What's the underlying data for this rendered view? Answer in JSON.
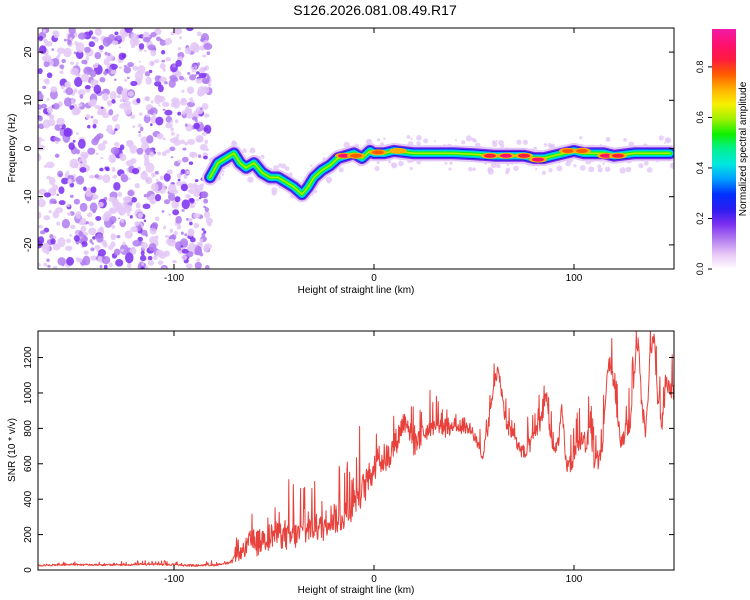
{
  "title": "S126.2026.081.08.49.R17",
  "chart_data": [
    {
      "type": "heatmap",
      "name": "spectrogram",
      "xlabel": "Height of straight line (km)",
      "ylabel": "Frequency (Hz)",
      "xlim": [
        -168,
        150
      ],
      "ylim": [
        -25,
        25
      ],
      "xticks": [
        -100,
        0,
        100
      ],
      "xtick_labels": [
        "-100",
        "0",
        "100"
      ],
      "yticks": [
        -20,
        -10,
        0,
        10,
        20
      ],
      "ytick_labels": [
        "-20",
        "-10",
        "0",
        "10",
        "20"
      ],
      "grid": false,
      "colorbar": {
        "label": "Normalized spectral amplitude",
        "range": [
          0,
          0.95
        ],
        "ticks": [
          0.0,
          0.2,
          0.4,
          0.6,
          0.8
        ],
        "tick_labels": [
          "0.0",
          "0.2",
          "0.4",
          "0.6",
          "0.8"
        ],
        "colors": [
          "#ffffff",
          "#e7c6f6",
          "#b27cf0",
          "#7a2ef0",
          "#2a1cf0",
          "#0032ff",
          "#00a0ff",
          "#00e8e0",
          "#00f090",
          "#10f000",
          "#a0f000",
          "#f8f000",
          "#ffb000",
          "#ff5a00",
          "#ff1a40",
          "#ff1070",
          "#f01aa8"
        ]
      },
      "ridge": {
        "x": [
          -82,
          -78,
          -74,
          -70,
          -67,
          -64,
          -60,
          -56,
          -52,
          -48,
          -44,
          -40,
          -36,
          -33,
          -30,
          -26,
          -22,
          -18,
          -14,
          -10,
          -6,
          -2,
          0,
          5,
          10,
          20,
          30,
          40,
          50,
          60,
          70,
          75,
          80,
          85,
          90,
          95,
          100,
          105,
          110,
          115,
          120,
          130,
          140,
          148
        ],
        "y": [
          -6,
          -3,
          -2,
          -1,
          -3,
          -4,
          -3,
          -5,
          -6,
          -6,
          -7,
          -8,
          -9.5,
          -8,
          -6,
          -4.5,
          -3.5,
          -2,
          -1.5,
          -1,
          -2,
          -0.5,
          -1,
          -1,
          -0.5,
          -1,
          -1,
          -1,
          -1.2,
          -1.5,
          -1.5,
          -1.5,
          -2,
          -2,
          -1.5,
          -1,
          -0.5,
          -1,
          -1,
          -1,
          -1.5,
          -1,
          -1,
          -1
        ]
      },
      "hotspots": [
        {
          "x": -15,
          "y": -1.5,
          "level": 0.9
        },
        {
          "x": -9,
          "y": -1.5,
          "level": 0.75
        },
        {
          "x": 2,
          "y": -0.8,
          "level": 0.8
        },
        {
          "x": 12,
          "y": -0.5,
          "level": 0.7
        },
        {
          "x": 58,
          "y": -1.5,
          "level": 0.85
        },
        {
          "x": 66,
          "y": -1.5,
          "level": 0.9
        },
        {
          "x": 75,
          "y": -1.5,
          "level": 0.85
        },
        {
          "x": 82,
          "y": -2.3,
          "level": 0.9
        },
        {
          "x": 97,
          "y": -0.5,
          "level": 0.8
        },
        {
          "x": 104,
          "y": -0.5,
          "level": 0.75
        },
        {
          "x": 116,
          "y": -1.5,
          "level": 0.9
        },
        {
          "x": 122,
          "y": -1.5,
          "level": 0.85
        }
      ],
      "noise_region_x": [
        -168,
        -82
      ]
    },
    {
      "type": "line",
      "name": "snr",
      "xlabel": "Height of straight line (km)",
      "ylabel": "SNR (10 * v/v)",
      "xlim": [
        -168,
        150
      ],
      "ylim": [
        0,
        1350
      ],
      "xticks": [
        -100,
        0,
        100
      ],
      "xtick_labels": [
        "-100",
        "0",
        "100"
      ],
      "yticks": [
        0,
        200,
        400,
        600,
        800,
        1000,
        1200
      ],
      "ytick_labels": [
        "0",
        "200",
        "400",
        "600",
        "800",
        "1000",
        "1200"
      ],
      "grid": false,
      "series": [
        {
          "name": "SNR",
          "color": "#e8403a",
          "envelope": {
            "x": [
              -168,
              -150,
              -130,
              -110,
              -90,
              -80,
              -72,
              -66,
              -62,
              -58,
              -54,
              -50,
              -46,
              -42,
              -38,
              -34,
              -30,
              -26,
              -22,
              -18,
              -14,
              -10,
              -6,
              -2,
              0,
              4,
              8,
              12,
              14,
              16,
              20,
              24,
              28,
              32,
              36,
              40,
              44,
              48,
              50,
              54,
              58,
              60,
              62,
              64,
              66,
              70,
              72,
              76,
              80,
              84,
              86,
              88,
              90,
              92,
              94,
              96,
              98,
              100,
              104,
              106,
              108,
              110,
              112,
              114,
              116,
              118,
              120,
              122,
              124,
              126,
              128,
              130,
              132,
              134,
              136,
              138,
              140,
              142,
              144,
              146,
              148,
              150
            ],
            "y": [
              25,
              30,
              28,
              32,
              25,
              28,
              40,
              100,
              160,
              150,
              180,
              200,
              190,
              180,
              200,
              220,
              250,
              230,
              300,
              280,
              320,
              380,
              450,
              520,
              600,
              620,
              650,
              750,
              820,
              850,
              700,
              760,
              800,
              820,
              780,
              810,
              800,
              800,
              760,
              640,
              850,
              1050,
              1120,
              1000,
              820,
              760,
              700,
              650,
              760,
              850,
              1000,
              780,
              650,
              720,
              900,
              600,
              580,
              640,
              750,
              700,
              800,
              620,
              600,
              680,
              1000,
              1200,
              1050,
              850,
              700,
              820,
              800,
              1100,
              1300,
              900,
              780,
              1200,
              1300,
              950,
              800,
              1050,
              1000,
              1020
            ]
          },
          "jitter": {
            "x": [
              -168,
              -72,
              -60,
              -20,
              0,
              40,
              80,
              150
            ],
            "amp": [
              8,
              12,
              150,
              160,
              190,
              60,
              90,
              110
            ]
          }
        }
      ]
    }
  ]
}
